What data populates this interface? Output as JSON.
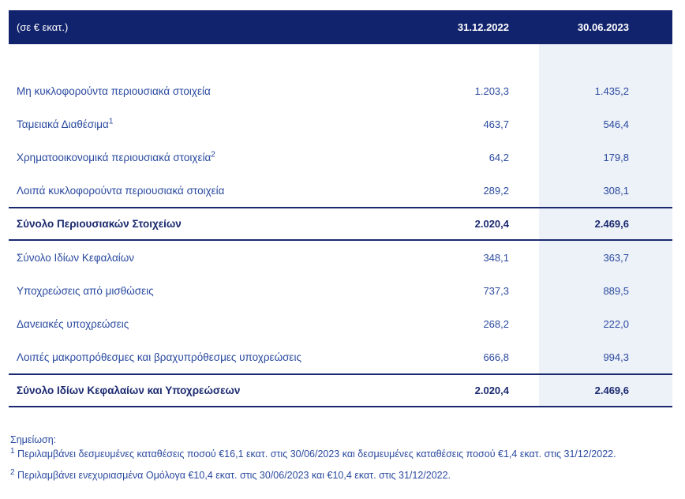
{
  "table": {
    "unit_label": "(σε € εκατ.)",
    "columns": [
      "31.12.2022",
      "30.06.2023"
    ],
    "rows": [
      {
        "label": "Μη κυκλοφορούντα περιουσιακά στοιχεία",
        "sup": "",
        "values": [
          "1.203,3",
          "1.435,2"
        ],
        "style": "normal"
      },
      {
        "label": "Ταμειακά Διαθέσιμα",
        "sup": "1",
        "values": [
          "463,7",
          "546,4"
        ],
        "style": "normal"
      },
      {
        "label": "Χρηματοοικονομικά περιουσιακά στοιχεία",
        "sup": "2",
        "values": [
          "64,2",
          "179,8"
        ],
        "style": "normal"
      },
      {
        "label": "Λοιπά κυκλοφορούντα περιουσιακά στοιχεία",
        "sup": "",
        "values": [
          "289,2",
          "308,1"
        ],
        "style": "normal"
      },
      {
        "label": "Σύνολο Περιουσιακών Στοιχείων",
        "sup": "",
        "values": [
          "2.020,4",
          "2.469,6"
        ],
        "style": "total"
      },
      {
        "label": "Σύνολο Ιδίων Κεφαλαίων",
        "sup": "",
        "values": [
          "348,1",
          "363,7"
        ],
        "style": "normal"
      },
      {
        "label": "Υποχρεώσεις από μισθώσεις",
        "sup": "",
        "values": [
          "737,3",
          "889,5"
        ],
        "style": "normal"
      },
      {
        "label": "Δανειακές υποχρεώσεις",
        "sup": "",
        "values": [
          "268,2",
          "222,0"
        ],
        "style": "normal"
      },
      {
        "label": "Λοιπές μακροπρόθεσμες και βραχυπρόθεσμες υποχρεώσεις",
        "sup": "",
        "values": [
          "666,8",
          "994,3"
        ],
        "style": "normal"
      },
      {
        "label": "Σύνολο Ιδίων Κεφαλαίων και Υποχρεώσεων",
        "sup": "",
        "values": [
          "2.020,4",
          "2.469,6"
        ],
        "style": "total"
      }
    ]
  },
  "footnotes": {
    "title": "Σημείωση:",
    "items": [
      {
        "marker": "1",
        "text": "Περιλαμβάνει δεσμευμένες καταθέσεις ποσού €16,1 εκατ. στις 30/06/2023 και δεσμευμένες καταθέσεις ποσού €1,4 εκατ. στις 31/12/2022."
      },
      {
        "marker": "2",
        "text": "Περιλαμβάνει ενεχυριασμένα Ομόλογα €10,4 εκατ. στις 30/06/2023 και €10,4 εκατ. στις 31/12/2022."
      }
    ]
  },
  "colors": {
    "header_bg": "#12236d",
    "header_text": "#ffffff",
    "body_text": "#2a4a9f",
    "total_text": "#1b2a70",
    "highlight_column_bg": "#edf1f8",
    "total_border": "#1b2a70"
  }
}
